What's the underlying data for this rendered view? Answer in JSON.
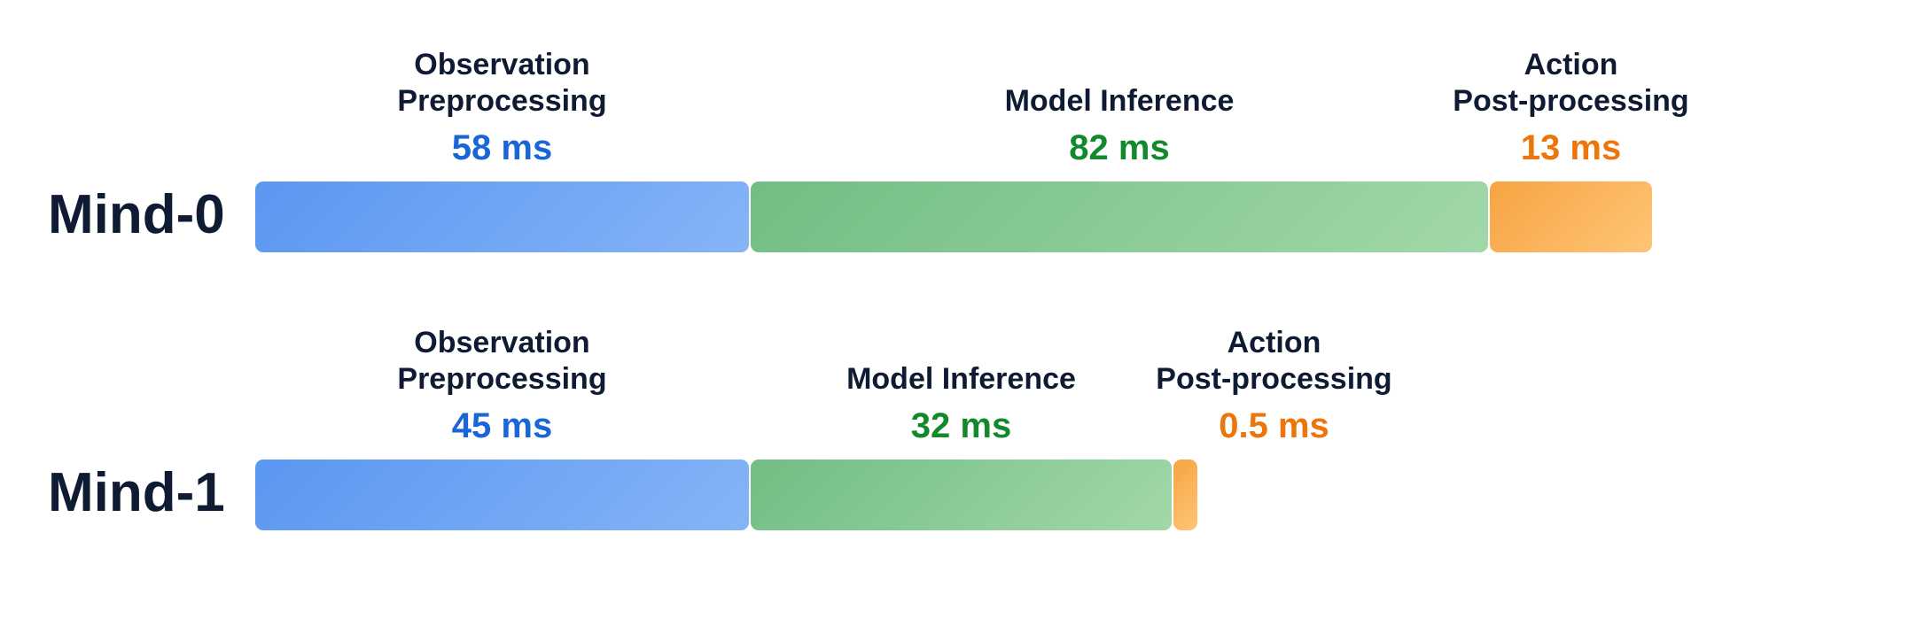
{
  "chart_data": {
    "type": "bar",
    "orientation": "horizontal",
    "stacked": true,
    "grid": false,
    "rows": [
      {
        "label": "Mind-0",
        "segments": [
          {
            "name_lines": [
              "Observation",
              "Preprocessing"
            ],
            "value": 58,
            "value_label": "58 ms",
            "color": "#5a97f2",
            "color_end": "#86b4f6",
            "text_color": "#1a66d6"
          },
          {
            "name_lines": [
              "Model Inference"
            ],
            "value": 82,
            "value_label": "82 ms",
            "color": "#72bd84",
            "color_end": "#a2d8a9",
            "text_color": "#128a2c"
          },
          {
            "name_lines": [
              "Action",
              "Post-processing"
            ],
            "value": 13,
            "value_label": "13 ms",
            "color": "#f6a443",
            "color_end": "#ffc575",
            "text_color": "#ec760c"
          }
        ]
      },
      {
        "label": "Mind-1",
        "segments": [
          {
            "name_lines": [
              "Observation",
              "Preprocessing"
            ],
            "value": 45,
            "value_label": "45 ms",
            "color": "#5a97f2",
            "color_end": "#86b4f6",
            "text_color": "#1a66d6"
          },
          {
            "name_lines": [
              "Model Inference"
            ],
            "value": 32,
            "value_label": "32 ms",
            "color": "#72bd84",
            "color_end": "#a2d8a9",
            "text_color": "#128a2c"
          },
          {
            "name_lines": [
              "Action",
              "Post-processing"
            ],
            "value": 0.5,
            "value_label": "0.5 ms",
            "color": "#f6a443",
            "color_end": "#ffc575",
            "text_color": "#ec760c"
          }
        ]
      }
    ]
  }
}
